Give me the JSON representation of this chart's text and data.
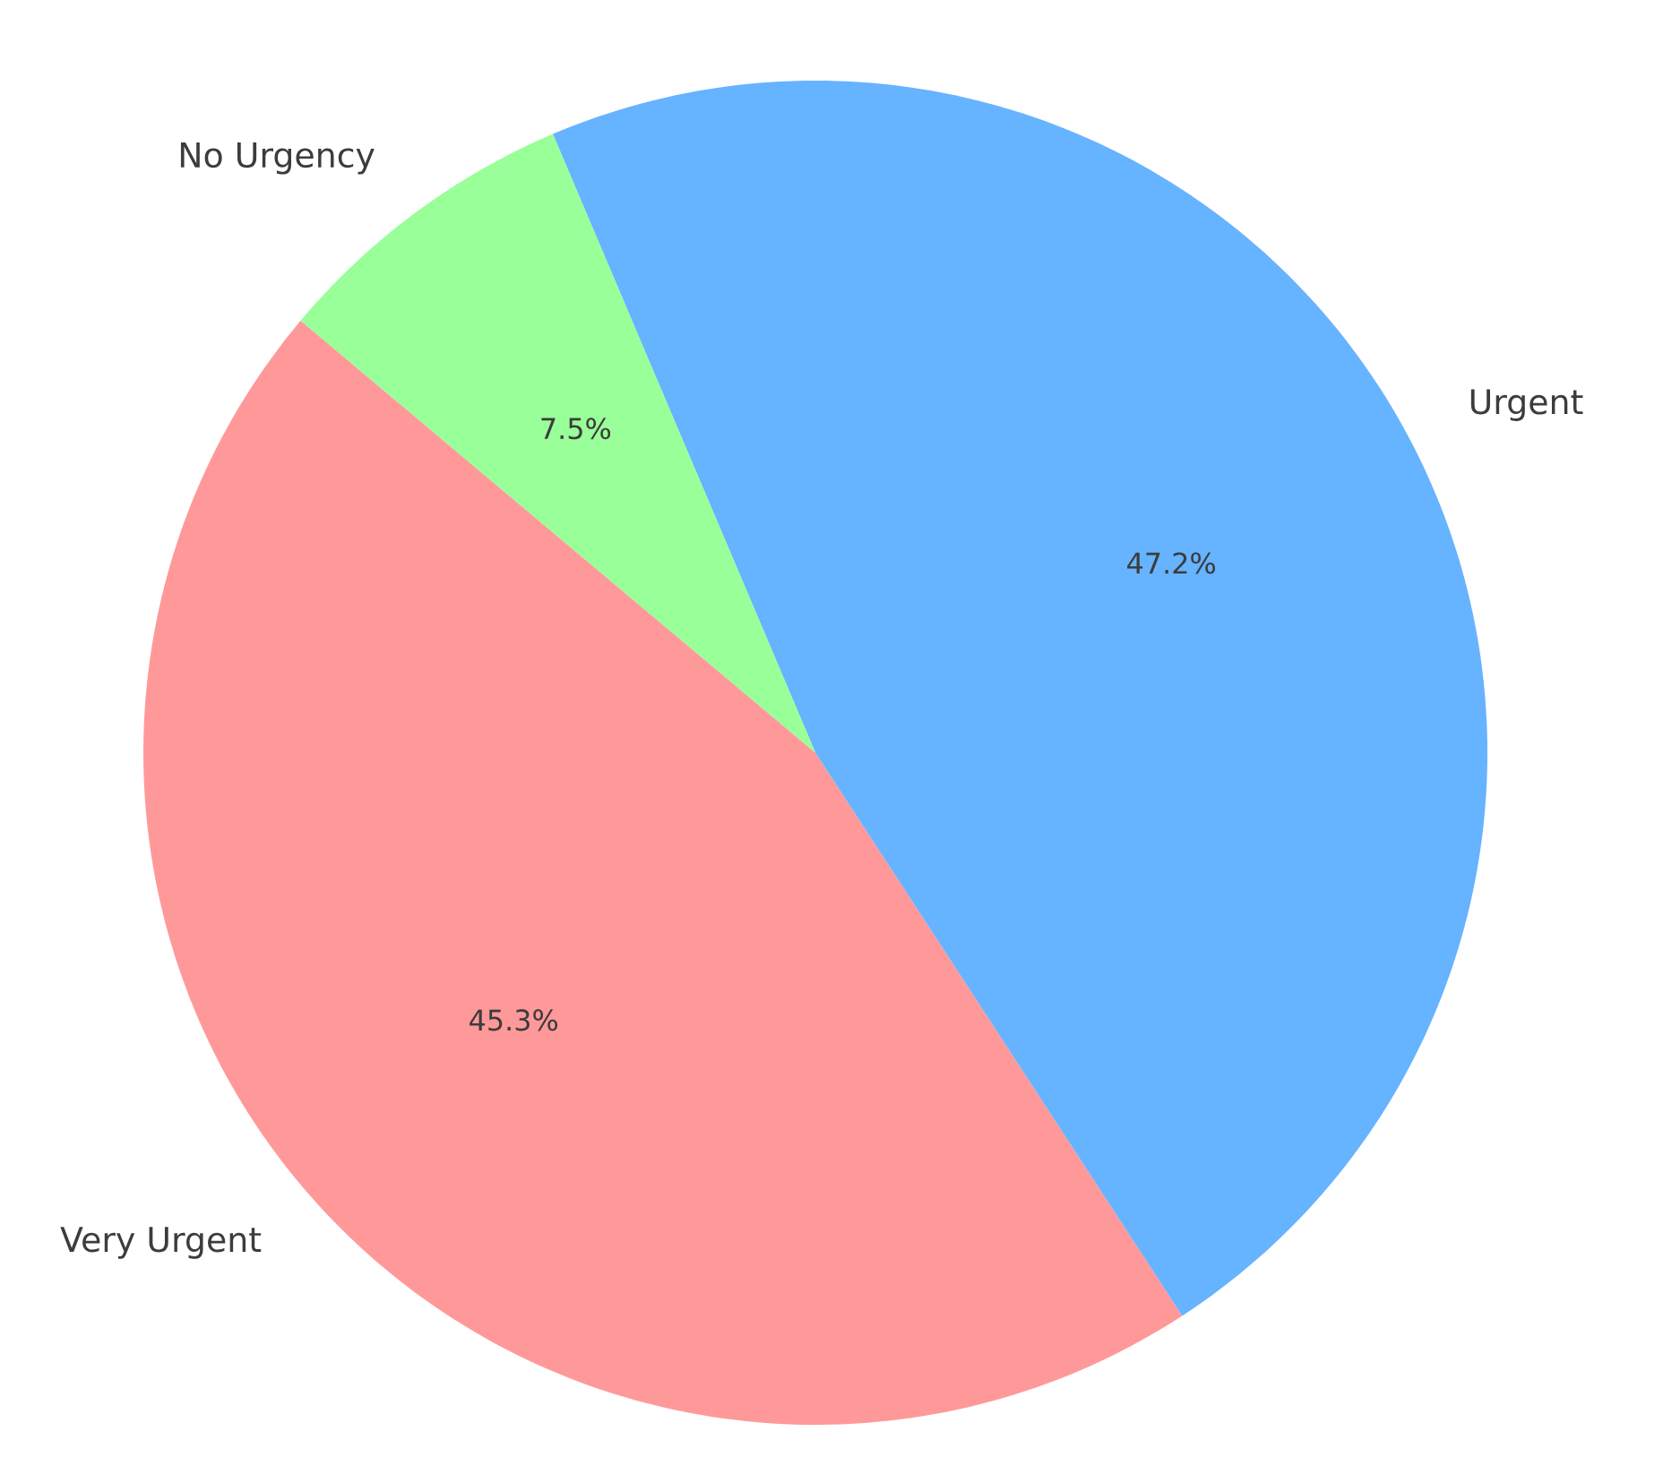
{
  "chart_data": {
    "type": "pie",
    "categories": [
      "Very Urgent",
      "Urgent",
      "No Urgency"
    ],
    "values": [
      45.3,
      47.2,
      7.5
    ],
    "colors": [
      "#ff9999",
      "#66b3ff",
      "#99ff99"
    ],
    "value_labels": [
      "45.3%",
      "47.2%",
      "7.5%"
    ]
  }
}
